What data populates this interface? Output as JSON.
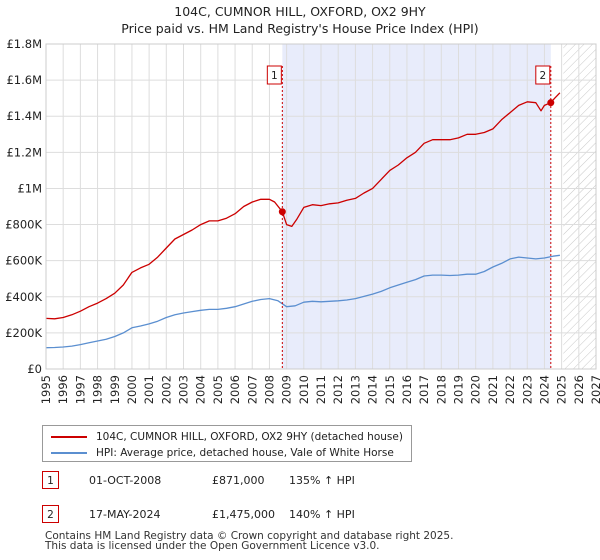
{
  "chart_data": {
    "type": "line",
    "title": "104C, CUMNOR HILL, OXFORD, OX2 9HY",
    "subtitle": "Price paid vs. HM Land Registry's House Price Index (HPI)",
    "xlim": [
      1995,
      2027
    ],
    "ylim": [
      0,
      1800000
    ],
    "x_ticks": [
      "1995",
      "1996",
      "1997",
      "1998",
      "1999",
      "2000",
      "2001",
      "2002",
      "2003",
      "2004",
      "2005",
      "2006",
      "2007",
      "2008",
      "2009",
      "2010",
      "2011",
      "2012",
      "2013",
      "2014",
      "2015",
      "2016",
      "2017",
      "2018",
      "2019",
      "2020",
      "2021",
      "2022",
      "2023",
      "2024",
      "2025",
      "2026",
      "2027"
    ],
    "y_ticks": [
      {
        "value": 0,
        "label": "£0"
      },
      {
        "value": 200000,
        "label": "£200K"
      },
      {
        "value": 400000,
        "label": "£400K"
      },
      {
        "value": 600000,
        "label": "£600K"
      },
      {
        "value": 800000,
        "label": "£800K"
      },
      {
        "value": 1000000,
        "label": "£1M"
      },
      {
        "value": 1200000,
        "label": "£1.2M"
      },
      {
        "value": 1400000,
        "label": "£1.4M"
      },
      {
        "value": 1600000,
        "label": "£1.6M"
      },
      {
        "value": 1800000,
        "label": "£1.8M"
      }
    ],
    "grid": true,
    "shaded_period": {
      "from": 2008.75,
      "to": 2024.37,
      "color": "#e8ecfb"
    },
    "forecast_hatch_from": 2025.1,
    "series": [
      {
        "name": "104C, CUMNOR HILL, OXFORD, OX2 9HY (detached house)",
        "color": "#cc0000",
        "x": [
          1995.0,
          1995.5,
          1996.0,
          1996.5,
          1997.0,
          1997.5,
          1998.0,
          1998.5,
          1999.0,
          1999.5,
          2000.0,
          2000.5,
          2001.0,
          2001.5,
          2002.0,
          2002.5,
          2003.0,
          2003.5,
          2004.0,
          2004.5,
          2005.0,
          2005.5,
          2006.0,
          2006.5,
          2007.0,
          2007.5,
          2008.0,
          2008.3,
          2008.75,
          2009.0,
          2009.3,
          2009.6,
          2010.0,
          2010.5,
          2011.0,
          2011.5,
          2012.0,
          2012.5,
          2013.0,
          2013.5,
          2014.0,
          2014.5,
          2015.0,
          2015.5,
          2016.0,
          2016.5,
          2017.0,
          2017.5,
          2018.0,
          2018.5,
          2019.0,
          2019.5,
          2020.0,
          2020.5,
          2021.0,
          2021.5,
          2022.0,
          2022.5,
          2023.0,
          2023.5,
          2023.8,
          2024.0,
          2024.37,
          2024.6,
          2024.9
        ],
        "values": [
          280000,
          278000,
          285000,
          300000,
          320000,
          345000,
          365000,
          390000,
          420000,
          465000,
          535000,
          560000,
          580000,
          620000,
          670000,
          720000,
          745000,
          770000,
          800000,
          820000,
          820000,
          835000,
          860000,
          900000,
          925000,
          940000,
          940000,
          925000,
          871000,
          800000,
          790000,
          830000,
          895000,
          910000,
          905000,
          915000,
          920000,
          935000,
          945000,
          975000,
          1000000,
          1050000,
          1100000,
          1130000,
          1170000,
          1200000,
          1250000,
          1270000,
          1270000,
          1270000,
          1280000,
          1300000,
          1300000,
          1310000,
          1330000,
          1380000,
          1420000,
          1460000,
          1480000,
          1475000,
          1430000,
          1460000,
          1475000,
          1500000,
          1530000
        ]
      },
      {
        "name": "HPI: Average price, detached house, Vale of White Horse",
        "color": "#5b8fd0",
        "x": [
          1995.0,
          1995.5,
          1996.0,
          1996.5,
          1997.0,
          1997.5,
          1998.0,
          1998.5,
          1999.0,
          1999.5,
          2000.0,
          2000.5,
          2001.0,
          2001.5,
          2002.0,
          2002.5,
          2003.0,
          2003.5,
          2004.0,
          2004.5,
          2005.0,
          2005.5,
          2006.0,
          2006.5,
          2007.0,
          2007.5,
          2008.0,
          2008.5,
          2009.0,
          2009.5,
          2010.0,
          2010.5,
          2011.0,
          2011.5,
          2012.0,
          2012.5,
          2013.0,
          2013.5,
          2014.0,
          2014.5,
          2015.0,
          2015.5,
          2016.0,
          2016.5,
          2017.0,
          2017.5,
          2018.0,
          2018.5,
          2019.0,
          2019.5,
          2020.0,
          2020.5,
          2021.0,
          2021.5,
          2022.0,
          2022.5,
          2023.0,
          2023.5,
          2024.0,
          2024.5,
          2024.9
        ],
        "values": [
          118000,
          119000,
          122000,
          127000,
          135000,
          145000,
          155000,
          165000,
          180000,
          200000,
          228000,
          238000,
          250000,
          265000,
          285000,
          300000,
          310000,
          318000,
          325000,
          330000,
          330000,
          336000,
          345000,
          360000,
          375000,
          385000,
          390000,
          378000,
          345000,
          350000,
          370000,
          375000,
          372000,
          375000,
          378000,
          382000,
          390000,
          402000,
          415000,
          430000,
          450000,
          465000,
          480000,
          495000,
          515000,
          520000,
          520000,
          518000,
          520000,
          525000,
          525000,
          540000,
          565000,
          585000,
          610000,
          620000,
          615000,
          610000,
          615000,
          625000,
          630000
        ]
      }
    ],
    "annotations": [
      {
        "label": "1",
        "x": 2008.75,
        "price": 871000
      },
      {
        "label": "2",
        "x": 2024.37,
        "price": 1475000
      }
    ]
  },
  "legend": {
    "line1": "104C, CUMNOR HILL, OXFORD, OX2 9HY (detached house)",
    "line2": "HPI: Average price, detached house, Vale of White Horse",
    "color1": "#cc0000",
    "color2": "#5b8fd0"
  },
  "sales": [
    {
      "num": "1",
      "date": "01-OCT-2008",
      "price": "£871,000",
      "pct": "135% ↑ HPI"
    },
    {
      "num": "2",
      "date": "17-MAY-2024",
      "price": "£1,475,000",
      "pct": "140% ↑ HPI"
    }
  ],
  "footer": {
    "line1": "Contains HM Land Registry data © Crown copyright and database right 2025.",
    "line2": "This data is licensed under the Open Government Licence v3.0."
  }
}
